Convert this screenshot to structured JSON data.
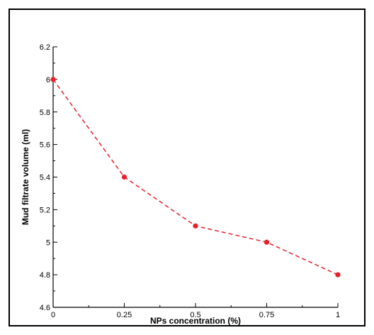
{
  "chart_data": {
    "type": "line",
    "title": "",
    "xlabel": "NPs concentration (%)",
    "ylabel": "Mud filtrate volume (ml)",
    "x": [
      0,
      0.25,
      0.5,
      0.75,
      1
    ],
    "series": [
      {
        "values": [
          6.0,
          5.4,
          5.1,
          5.0,
          4.8
        ],
        "color": "#e8202a",
        "line_style": "dashed",
        "marker": "circle"
      }
    ],
    "xlim": [
      0,
      1
    ],
    "ylim": [
      4.6,
      6.2
    ],
    "xticks": [
      0,
      0.25,
      0.5,
      0.75,
      1
    ],
    "xtick_labels": [
      "0",
      "0.25",
      "0.5",
      "0.75",
      "1"
    ],
    "yticks": [
      4.6,
      4.8,
      5.0,
      5.2,
      5.4,
      5.6,
      5.8,
      6.0,
      6.2
    ],
    "ytick_labels": [
      "4.6",
      "4.8",
      "5",
      "5.2",
      "5.4",
      "5.6",
      "5.8",
      "6",
      "6.2"
    ],
    "grid": false,
    "legend": "none"
  }
}
